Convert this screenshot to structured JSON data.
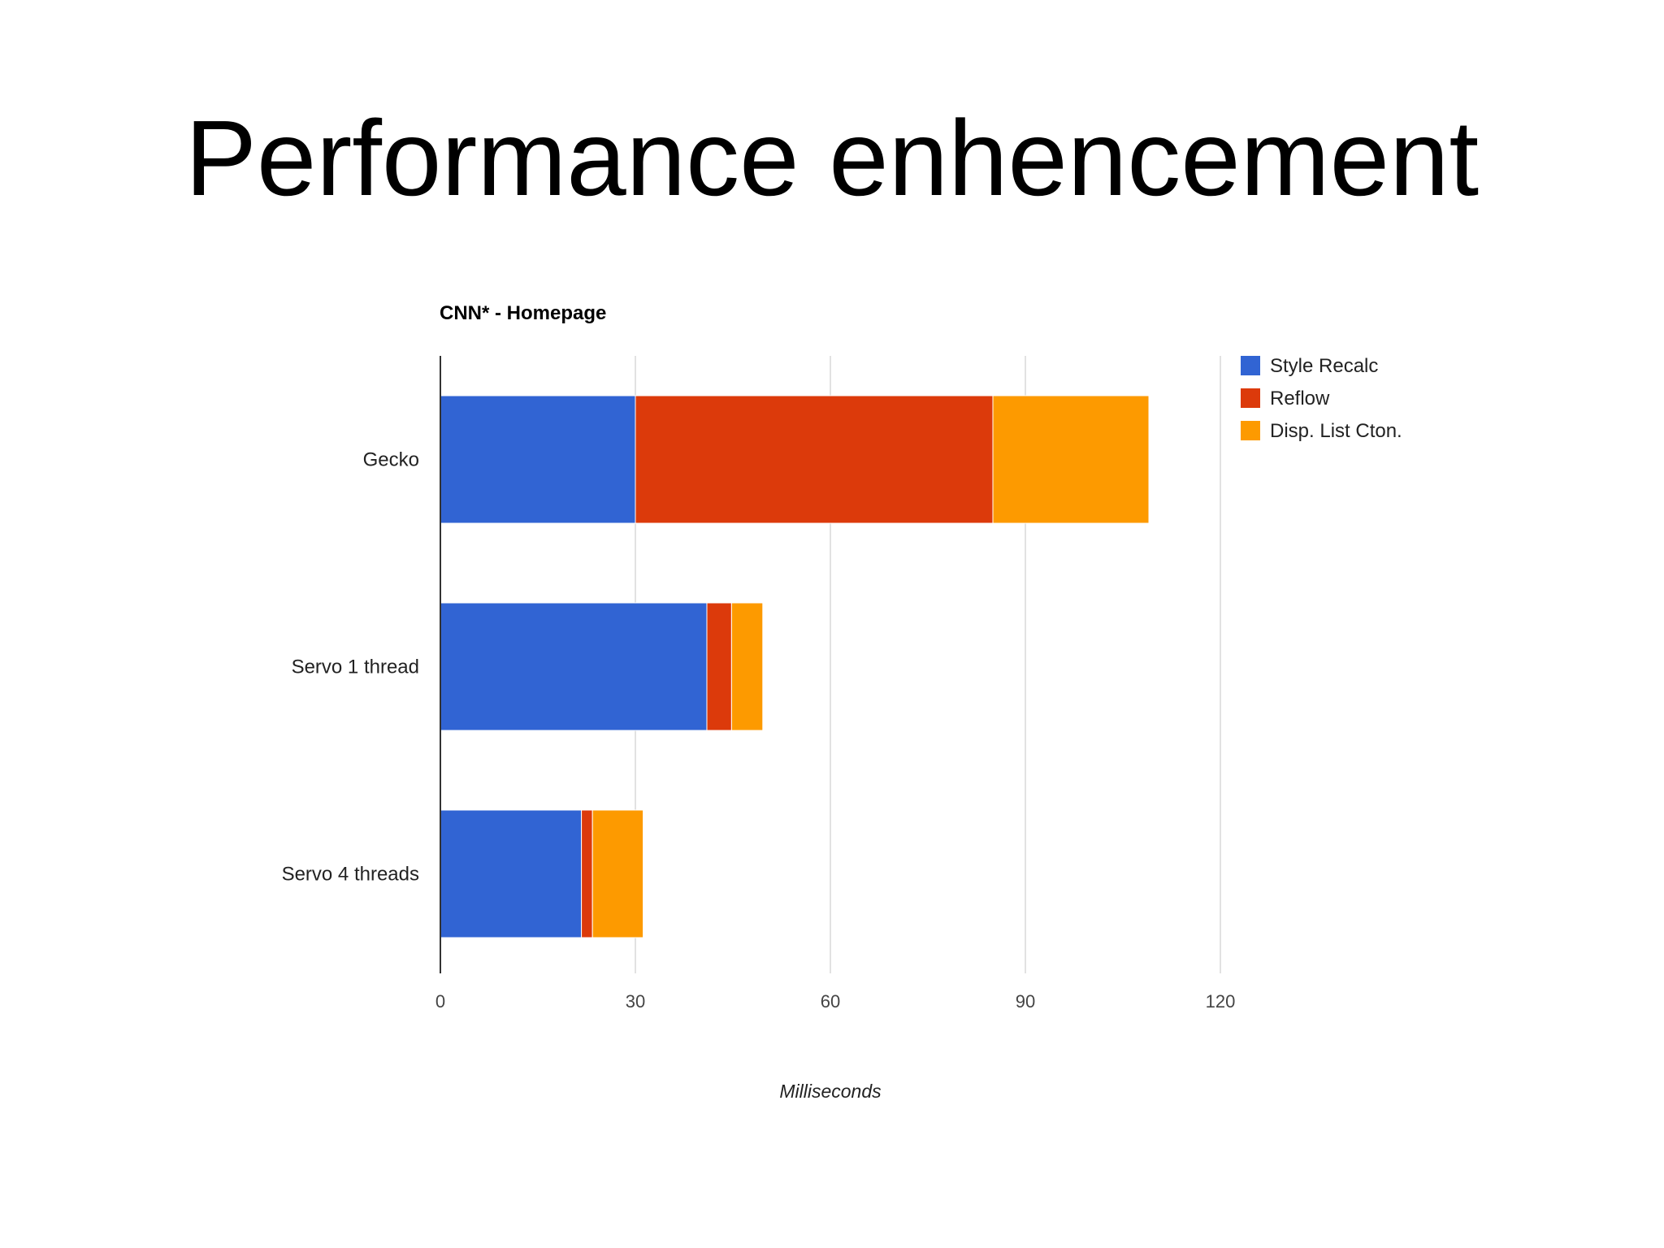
{
  "slide": {
    "title": "Performance enhencement"
  },
  "colors": {
    "style_recalc": "#3164d3",
    "reflow": "#dc3a0b",
    "disp_list": "#fd9a00",
    "grid": "#d9d9d9",
    "axis": "#333333"
  },
  "chart_data": {
    "type": "bar",
    "orientation": "horizontal",
    "stacked": true,
    "title": "CNN* - Homepage",
    "xlabel": "Milliseconds",
    "ylabel": "",
    "xlim": [
      0,
      120
    ],
    "xticks": [
      0,
      30,
      60,
      90,
      120
    ],
    "grid": true,
    "legend_position": "top-right",
    "categories": [
      "Gecko",
      "Servo 1 thread",
      "Servo 4 threads"
    ],
    "series": [
      {
        "name": "Style Recalc",
        "values": [
          30,
          41,
          21.7
        ]
      },
      {
        "name": "Reflow",
        "values": [
          55,
          3.8,
          1.7
        ]
      },
      {
        "name": "Disp. List Cton.",
        "values": [
          24,
          4.8,
          7.8
        ]
      }
    ]
  }
}
